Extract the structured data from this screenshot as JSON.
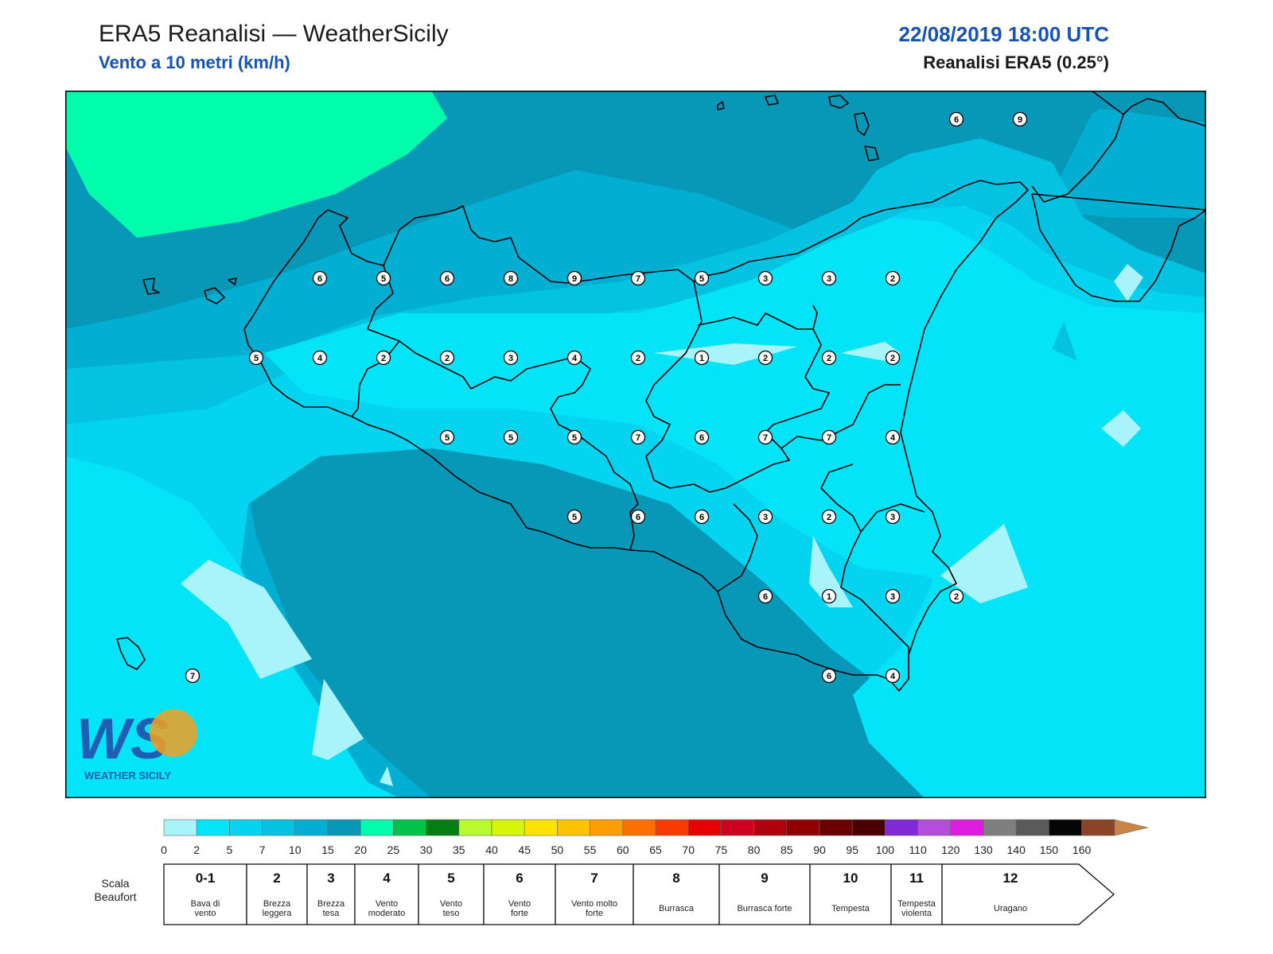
{
  "header": {
    "title": "ERA5 Reanalisi — WeatherSicily",
    "subtitle": "Vento a 10 metri (km/h)",
    "datetime": "22/08/2019 18:00 UTC",
    "model": "Reanalisi ERA5 (0.25°)"
  },
  "logo": {
    "text": "WEATHER SICILY",
    "mark": "WS"
  },
  "stations": [
    {
      "v": "6",
      "lon": 12.5,
      "lat": 38.0
    },
    {
      "v": "5",
      "lon": 13.0,
      "lat": 38.0
    },
    {
      "v": "6",
      "lon": 13.5,
      "lat": 38.0
    },
    {
      "v": "8",
      "lon": 14.0,
      "lat": 38.0
    },
    {
      "v": "9",
      "lon": 14.5,
      "lat": 38.0
    },
    {
      "v": "7",
      "lon": 15.0,
      "lat": 38.0
    },
    {
      "v": "5",
      "lon": 15.5,
      "lat": 38.0
    },
    {
      "v": "3",
      "lon": 16.0,
      "lat": 38.0
    },
    {
      "v": "3",
      "lon": 16.5,
      "lat": 38.0
    },
    {
      "v": "2",
      "lon": 17.0,
      "lat": 38.0
    },
    {
      "v": "5",
      "lon": 12.0,
      "lat": 37.5
    },
    {
      "v": "4",
      "lon": 12.5,
      "lat": 37.5
    },
    {
      "v": "2",
      "lon": 13.0,
      "lat": 37.5
    },
    {
      "v": "2",
      "lon": 13.5,
      "lat": 37.5
    },
    {
      "v": "3",
      "lon": 14.0,
      "lat": 37.5
    },
    {
      "v": "4",
      "lon": 14.5,
      "lat": 37.5
    },
    {
      "v": "2",
      "lon": 15.0,
      "lat": 37.5
    },
    {
      "v": "1",
      "lon": 15.5,
      "lat": 37.5
    },
    {
      "v": "2",
      "lon": 16.0,
      "lat": 37.5
    },
    {
      "v": "2",
      "lon": 16.5,
      "lat": 37.5
    },
    {
      "v": "2",
      "lon": 17.0,
      "lat": 37.5
    },
    {
      "v": "5",
      "lon": 13.5,
      "lat": 37.0
    },
    {
      "v": "5",
      "lon": 14.0,
      "lat": 37.0
    },
    {
      "v": "5",
      "lon": 14.5,
      "lat": 37.0
    },
    {
      "v": "7",
      "lon": 15.0,
      "lat": 37.0
    },
    {
      "v": "6",
      "lon": 15.5,
      "lat": 37.0
    },
    {
      "v": "7",
      "lon": 16.0,
      "lat": 37.0
    },
    {
      "v": "7",
      "lon": 16.5,
      "lat": 37.0
    },
    {
      "v": "4",
      "lon": 17.0,
      "lat": 37.0
    },
    {
      "v": "5",
      "lon": 14.5,
      "lat": 36.5
    },
    {
      "v": "6",
      "lon": 15.0,
      "lat": 36.5
    },
    {
      "v": "6",
      "lon": 15.5,
      "lat": 36.5
    },
    {
      "v": "3",
      "lon": 16.0,
      "lat": 36.5
    },
    {
      "v": "2",
      "lon": 16.5,
      "lat": 36.5
    },
    {
      "v": "3",
      "lon": 17.0,
      "lat": 36.5
    },
    {
      "v": "6",
      "lon": 16.0,
      "lat": 36.0
    },
    {
      "v": "1",
      "lon": 16.5,
      "lat": 36.0
    },
    {
      "v": "3",
      "lon": 17.0,
      "lat": 36.0
    },
    {
      "v": "2",
      "lon": 17.5,
      "lat": 36.0
    },
    {
      "v": "6",
      "lon": 16.5,
      "lat": 35.5
    },
    {
      "v": "4",
      "lon": 17.0,
      "lat": 35.5
    },
    {
      "v": "7",
      "lon": 11.5,
      "lat": 35.5
    },
    {
      "v": "6",
      "lon": 17.5,
      "lat": 39.0
    },
    {
      "v": "9",
      "lon": 18.0,
      "lat": 39.0
    }
  ],
  "colorbar": {
    "ticks": [
      "0",
      "2",
      "5",
      "7",
      "10",
      "15",
      "20",
      "25",
      "30",
      "35",
      "40",
      "45",
      "50",
      "55",
      "60",
      "65",
      "70",
      "75",
      "80",
      "85",
      "90",
      "95",
      "100",
      "110",
      "120",
      "130",
      "140",
      "150",
      "160"
    ],
    "colors": [
      "#a9f4fb",
      "#04e4f9",
      "#04d4f0",
      "#04c2e2",
      "#02aed2",
      "#0798b8",
      "#00fdab",
      "#00c34a",
      "#047d13",
      "#b9fa2c",
      "#d6f608",
      "#fde300",
      "#fcc300",
      "#fc9e00",
      "#fb7000",
      "#fa3b00",
      "#e80000",
      "#d00020",
      "#b0000e",
      "#900000",
      "#6a0000",
      "#4a0000",
      "#7f2ad6",
      "#b44ed8",
      "#e01ce0",
      "#7f7f7f",
      "#5a5a5a",
      "#050505",
      "#8a4426",
      "#c98546"
    ]
  },
  "beaufort": {
    "label": "Scala Beaufort",
    "classes": [
      {
        "n": "0-1",
        "d": "Bava di vento"
      },
      {
        "n": "2",
        "d": "Brezza leggera"
      },
      {
        "n": "3",
        "d": "Brezza tesa"
      },
      {
        "n": "4",
        "d": "Vento moderato"
      },
      {
        "n": "5",
        "d": "Vento teso"
      },
      {
        "n": "6",
        "d": "Vento forte"
      },
      {
        "n": "7",
        "d": "Vento molto forte"
      },
      {
        "n": "8",
        "d": "Burrasca"
      },
      {
        "n": "9",
        "d": "Burrasca forte"
      },
      {
        "n": "10",
        "d": "Tempesta"
      },
      {
        "n": "11",
        "d": "Tempesta violenta"
      },
      {
        "n": "12",
        "d": "Uragano"
      }
    ]
  }
}
